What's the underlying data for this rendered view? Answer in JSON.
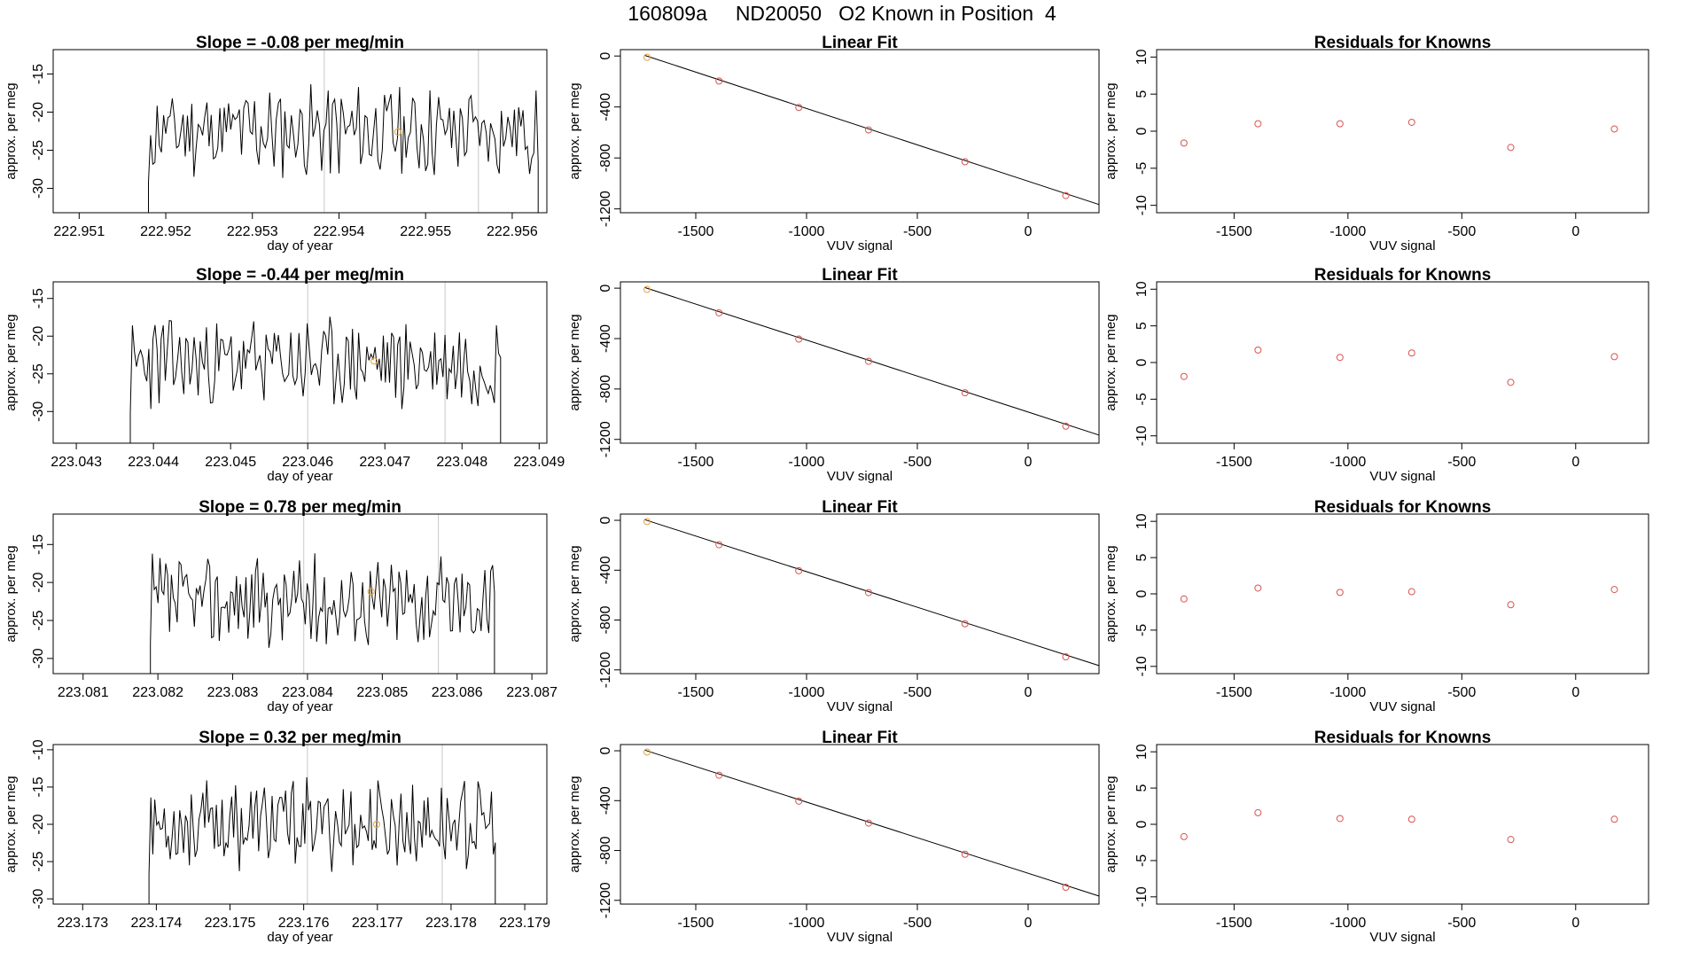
{
  "page_title": "160809a     ND20050   O2 Known in Position  4",
  "colors": {
    "line": "#000000",
    "known_point": "#e5a23a",
    "residual_point": "#d9534f",
    "fit_point": "#d9534f",
    "vline": "#c8c8c8"
  },
  "chart_data": [
    {
      "type": "line",
      "row": 0,
      "panel": "timeseries",
      "title": "Slope =  -0.08  per meg/min",
      "xlabel": "day of year",
      "ylabel": "approx. per meg",
      "xlim": [
        222.9507,
        222.9564
      ],
      "ylim": [
        -33.2,
        -11.8
      ],
      "x_ticks": [
        222.951,
        222.952,
        222.953,
        222.954,
        222.955,
        222.956
      ],
      "y_ticks": [
        -30,
        -25,
        -20,
        -15
      ],
      "x_start": 222.9518,
      "x_end": 222.9563,
      "seed": 11,
      "mean": -22.5,
      "amp": 5,
      "vlines": [
        222.95383,
        222.95561
      ],
      "known_point": {
        "x": 222.95468,
        "y": -22.6
      }
    },
    {
      "type": "line",
      "row": 1,
      "panel": "timeseries",
      "title": "Slope =  -0.44  per meg/min",
      "xlabel": "day of year",
      "ylabel": "approx. per meg",
      "xlim": [
        223.0427,
        223.0491
      ],
      "ylim": [
        -34.2,
        -12.8
      ],
      "x_ticks": [
        223.043,
        223.044,
        223.045,
        223.046,
        223.047,
        223.048,
        223.049
      ],
      "y_ticks": [
        -30,
        -25,
        -20,
        -15
      ],
      "x_start": 223.0437,
      "x_end": 223.0485,
      "seed": 23,
      "mean": -23.5,
      "amp": 5,
      "vlines": [
        223.046,
        223.04778
      ],
      "known_point": {
        "x": 223.04686,
        "y": -23.3
      }
    },
    {
      "type": "line",
      "row": 2,
      "panel": "timeseries",
      "title": "Slope =  0.78  per meg/min",
      "xlabel": "day of year",
      "ylabel": "approx. per meg",
      "xlim": [
        223.0806,
        223.0872
      ],
      "ylim": [
        -32.0,
        -11.0
      ],
      "x_ticks": [
        223.081,
        223.082,
        223.083,
        223.084,
        223.085,
        223.086,
        223.087
      ],
      "y_ticks": [
        -30,
        -25,
        -20,
        -15
      ],
      "x_start": 223.0819,
      "x_end": 223.0865,
      "seed": 37,
      "mean": -22.5,
      "amp": 5,
      "vlines": [
        223.08395,
        223.08575
      ],
      "known_point": {
        "x": 223.08485,
        "y": -21.2
      }
    },
    {
      "type": "line",
      "row": 3,
      "panel": "timeseries",
      "title": "Slope =  0.32  per meg/min",
      "xlabel": "day of year",
      "ylabel": "approx. per meg",
      "xlim": [
        223.1726,
        223.1793
      ],
      "ylim": [
        -30.7,
        -9.3
      ],
      "x_ticks": [
        223.173,
        223.174,
        223.175,
        223.176,
        223.177,
        223.178,
        223.179
      ],
      "y_ticks": [
        -30,
        -25,
        -20,
        -15,
        -10
      ],
      "x_start": 223.1739,
      "x_end": 223.1786,
      "seed": 53,
      "mean": -20.0,
      "amp": 5,
      "vlines": [
        223.17605,
        223.17788
      ],
      "known_point": {
        "x": 223.17699,
        "y": -20.0
      }
    },
    {
      "type": "scatter",
      "row": 0,
      "panel": "fit",
      "title": "Linear Fit",
      "xlabel": "VUV signal",
      "ylabel": "approx. per meg",
      "xlim": [
        -1840,
        320
      ],
      "ylim": [
        -1230,
        50
      ],
      "x_ticks": [
        -1500,
        -1000,
        -500,
        0
      ],
      "y_ticks": [
        0,
        -400,
        -800,
        -1200
      ],
      "x": [
        -1720,
        -1395,
        -1035,
        -720,
        -285,
        170
      ],
      "y": [
        -10,
        -196,
        -404,
        -580,
        -830,
        -1095
      ],
      "fit_line": {
        "x": [
          -1730,
          340
        ],
        "y": [
          5,
          -1177
        ]
      }
    },
    {
      "type": "scatter",
      "row": 1,
      "panel": "fit",
      "title": "Linear Fit",
      "xlabel": "VUV signal",
      "ylabel": "approx. per meg",
      "xlim": [
        -1840,
        320
      ],
      "ylim": [
        -1230,
        50
      ],
      "x_ticks": [
        -1500,
        -1000,
        -500,
        0
      ],
      "y_ticks": [
        0,
        -400,
        -800,
        -1200
      ],
      "x": [
        -1720,
        -1395,
        -1035,
        -720,
        -285,
        170
      ],
      "y": [
        -10,
        -196,
        -404,
        -580,
        -830,
        -1095
      ],
      "fit_line": {
        "x": [
          -1730,
          340
        ],
        "y": [
          5,
          -1177
        ]
      }
    },
    {
      "type": "scatter",
      "row": 2,
      "panel": "fit",
      "title": "Linear Fit",
      "xlabel": "VUV signal",
      "ylabel": "approx. per meg",
      "xlim": [
        -1840,
        320
      ],
      "ylim": [
        -1230,
        50
      ],
      "x_ticks": [
        -1500,
        -1000,
        -500,
        0
      ],
      "y_ticks": [
        0,
        -400,
        -800,
        -1200
      ],
      "x": [
        -1720,
        -1395,
        -1035,
        -720,
        -285,
        170
      ],
      "y": [
        -10,
        -196,
        -404,
        -580,
        -830,
        -1095
      ],
      "fit_line": {
        "x": [
          -1730,
          340
        ],
        "y": [
          5,
          -1177
        ]
      }
    },
    {
      "type": "scatter",
      "row": 3,
      "panel": "fit",
      "title": "Linear Fit",
      "xlabel": "VUV signal",
      "ylabel": "approx. per meg",
      "xlim": [
        -1840,
        320
      ],
      "ylim": [
        -1230,
        50
      ],
      "x_ticks": [
        -1500,
        -1000,
        -500,
        0
      ],
      "y_ticks": [
        0,
        -400,
        -800,
        -1200
      ],
      "x": [
        -1720,
        -1395,
        -1035,
        -720,
        -285,
        170
      ],
      "y": [
        -10,
        -196,
        -404,
        -580,
        -830,
        -1095
      ],
      "fit_line": {
        "x": [
          -1730,
          340
        ],
        "y": [
          5,
          -1177
        ]
      }
    },
    {
      "type": "scatter",
      "row": 0,
      "panel": "residuals",
      "title": "Residuals for Knowns",
      "xlabel": "VUV signal",
      "ylabel": "approx. per meg",
      "xlim": [
        -1840,
        320
      ],
      "ylim": [
        -11,
        11
      ],
      "x_ticks": [
        -1500,
        -1000,
        -500,
        0
      ],
      "y_ticks": [
        10,
        5,
        0,
        -5,
        -10
      ],
      "x": [
        -1720,
        -1395,
        -1035,
        -720,
        -285,
        170
      ],
      "y": [
        -1.6,
        1.0,
        1.0,
        1.2,
        -2.2,
        0.3
      ]
    },
    {
      "type": "scatter",
      "row": 1,
      "panel": "residuals",
      "title": "Residuals for Knowns",
      "xlabel": "VUV signal",
      "ylabel": "approx. per meg",
      "xlim": [
        -1840,
        320
      ],
      "ylim": [
        -11,
        11
      ],
      "x_ticks": [
        -1500,
        -1000,
        -500,
        0
      ],
      "y_ticks": [
        10,
        5,
        0,
        -5,
        -10
      ],
      "x": [
        -1720,
        -1395,
        -1035,
        -720,
        -285,
        170
      ],
      "y": [
        -1.9,
        1.7,
        0.7,
        1.3,
        -2.7,
        0.8
      ]
    },
    {
      "type": "scatter",
      "row": 2,
      "panel": "residuals",
      "title": "Residuals for Knowns",
      "xlabel": "VUV signal",
      "ylabel": "approx. per meg",
      "xlim": [
        -1840,
        320
      ],
      "ylim": [
        -11,
        11
      ],
      "x_ticks": [
        -1500,
        -1000,
        -500,
        0
      ],
      "y_ticks": [
        10,
        5,
        0,
        -5,
        -10
      ],
      "x": [
        -1720,
        -1395,
        -1035,
        -720,
        -285,
        170
      ],
      "y": [
        -0.7,
        0.8,
        0.2,
        0.3,
        -1.5,
        0.6
      ]
    },
    {
      "type": "scatter",
      "row": 3,
      "panel": "residuals",
      "title": "Residuals for Knowns",
      "xlabel": "VUV signal",
      "ylabel": "approx. per meg",
      "xlim": [
        -1840,
        320
      ],
      "ylim": [
        -11,
        11
      ],
      "x_ticks": [
        -1500,
        -1000,
        -500,
        0
      ],
      "y_ticks": [
        10,
        5,
        0,
        -5,
        -10
      ],
      "x": [
        -1720,
        -1395,
        -1035,
        -720,
        -285,
        170
      ],
      "y": [
        -1.7,
        1.6,
        0.8,
        0.7,
        -2.1,
        0.7
      ]
    }
  ]
}
